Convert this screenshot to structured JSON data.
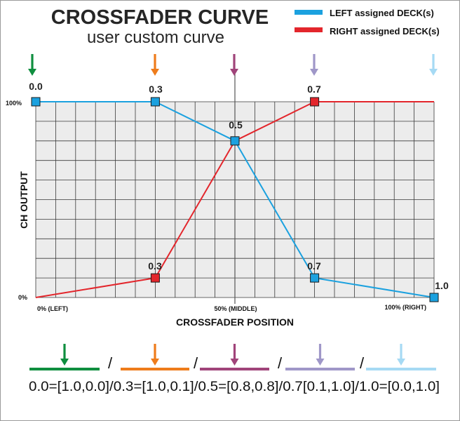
{
  "title": "CROSSFADER CURVE",
  "subtitle": "user custom curve",
  "legend": [
    {
      "label": "LEFT assigned DECK(s)",
      "color": "#1ba1df"
    },
    {
      "label": "RIGHT assigned DECK(s)",
      "color": "#e3262c"
    }
  ],
  "colors": {
    "left": "#1ba1df",
    "right": "#e3262c",
    "grid_bg": "#ececec",
    "grid_line": "#3a3a3a",
    "arrows": [
      "#0f8e3f",
      "#ee7c1b",
      "#a0447a",
      "#9f97c8",
      "#a6daf4"
    ]
  },
  "axes": {
    "ylabel": "CH OUTPUT",
    "xlabel": "CROSSFADER POSITION",
    "y_ticks": [
      "100%",
      "0%"
    ],
    "x_ticks": [
      "0% (LEFT)",
      "50% (MIDDLE)",
      "100% (RIGHT)"
    ]
  },
  "chart_data": {
    "type": "line",
    "title": "CROSSFADER CURVE",
    "subtitle": "user custom curve",
    "xlabel": "CROSSFADER POSITION",
    "ylabel": "CH OUTPUT",
    "xlim": [
      0,
      1
    ],
    "ylim": [
      0,
      1
    ],
    "grid": true,
    "legend": "top-right",
    "series": [
      {
        "name": "LEFT assigned DECK(s)",
        "x": [
          0.0,
          0.3,
          0.5,
          0.7,
          1.0
        ],
        "y": [
          1.0,
          1.0,
          0.8,
          0.1,
          0.0
        ]
      },
      {
        "name": "RIGHT assigned DECK(s)",
        "x": [
          0.0,
          0.3,
          0.5,
          0.7,
          1.0
        ],
        "y": [
          0.0,
          0.1,
          0.8,
          1.0,
          1.0
        ]
      }
    ],
    "annotations": [
      "0.0",
      "0.3",
      "0.5",
      "0.7",
      "0.3",
      "0.7",
      "1.0"
    ]
  },
  "breakpoints": [
    "0.0",
    "0.3",
    "0.5",
    "0.7",
    "1.0"
  ],
  "bottom": {
    "separator": "/",
    "formula": "0.0=[1.0,0.0]/0.3=[1.0,0.1]/0.5=[0.8,0.8]/0.7[0.1,1.0]/1.0=[0.0,1.0]"
  }
}
